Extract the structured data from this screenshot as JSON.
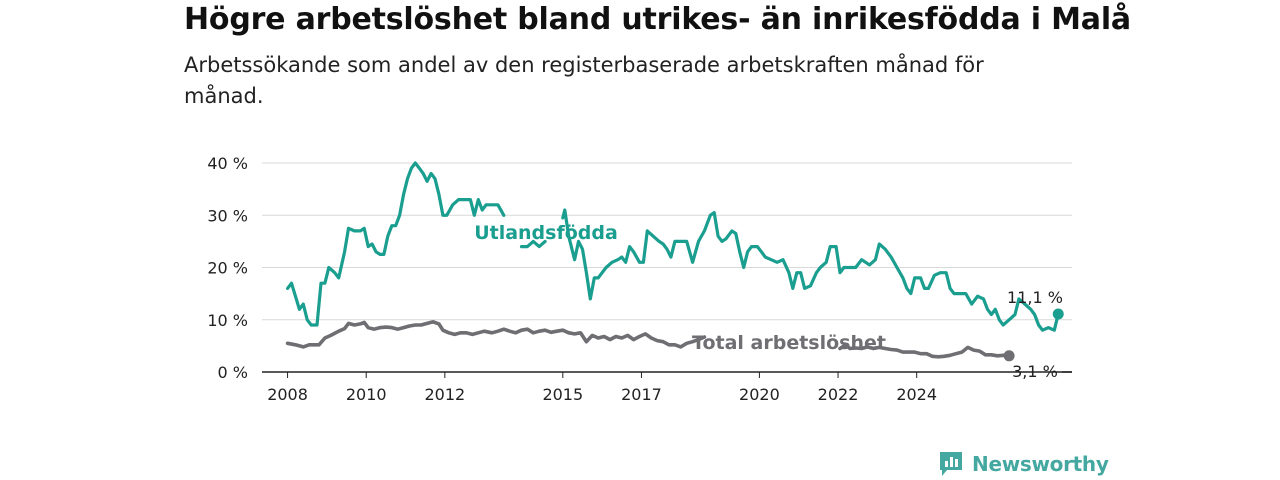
{
  "title": "Högre arbetslöshet bland utrikes- än inrikesfödda i Malå",
  "subtitle": "Arbetssökande som andel av den registerbaserade arbetskraften månad för månad.",
  "brand": {
    "name": "Newsworthy",
    "icon": "newsworthy-logo-icon",
    "color": "#45a8a0"
  },
  "chart_data": {
    "type": "line",
    "ylim": [
      0,
      40
    ],
    "y_ticks": [
      0,
      10,
      20,
      30,
      40
    ],
    "y_tick_labels": [
      "0 %",
      "10 %",
      "20 %",
      "30 %",
      "40 %"
    ],
    "x_ticks": [
      2008,
      2010,
      2012,
      2015,
      2017,
      2020,
      2022,
      2024
    ],
    "x_tick_labels": [
      "2008",
      "2010",
      "2012",
      "2015",
      "2017",
      "2020",
      "2022",
      "2024"
    ],
    "grid": true,
    "legend": "inline labels",
    "series": [
      {
        "name": "Utlandsfödda",
        "color": "#1a9e8f",
        "end_label": "11,1 %",
        "segments": [
          [
            [
              2008.0,
              16
            ],
            [
              2008.1,
              17
            ],
            [
              2008.3,
              12
            ],
            [
              2008.4,
              13
            ],
            [
              2008.5,
              10
            ],
            [
              2008.6,
              9
            ],
            [
              2008.75,
              9
            ],
            [
              2008.85,
              17
            ],
            [
              2008.95,
              17
            ],
            [
              2009.05,
              20
            ],
            [
              2009.2,
              19
            ],
            [
              2009.3,
              18
            ],
            [
              2009.45,
              23
            ],
            [
              2009.55,
              27.5
            ],
            [
              2009.7,
              27
            ],
            [
              2009.85,
              27
            ],
            [
              2009.95,
              27.5
            ],
            [
              2010.05,
              24
            ],
            [
              2010.15,
              24.5
            ],
            [
              2010.25,
              23
            ],
            [
              2010.35,
              22.5
            ],
            [
              2010.45,
              22.5
            ],
            [
              2010.55,
              26
            ],
            [
              2010.65,
              28
            ],
            [
              2010.75,
              28
            ],
            [
              2010.85,
              30
            ],
            [
              2010.95,
              34
            ],
            [
              2011.05,
              37
            ],
            [
              2011.15,
              39
            ],
            [
              2011.25,
              40
            ],
            [
              2011.35,
              39
            ],
            [
              2011.45,
              38
            ],
            [
              2011.55,
              36.5
            ],
            [
              2011.65,
              38
            ],
            [
              2011.75,
              37
            ],
            [
              2011.85,
              34
            ],
            [
              2011.95,
              30
            ],
            [
              2012.05,
              30
            ],
            [
              2012.2,
              32
            ],
            [
              2012.35,
              33
            ],
            [
              2012.5,
              33
            ],
            [
              2012.65,
              33
            ],
            [
              2012.75,
              30
            ],
            [
              2012.85,
              33
            ],
            [
              2012.95,
              31
            ],
            [
              2013.05,
              32
            ],
            [
              2013.2,
              32
            ],
            [
              2013.35,
              32
            ],
            [
              2013.5,
              30
            ]
          ],
          [
            [
              2013.95,
              24
            ],
            [
              2014.1,
              24
            ],
            [
              2014.25,
              25
            ],
            [
              2014.4,
              24
            ],
            [
              2014.55,
              25
            ]
          ],
          [
            [
              2015.0,
              29.5
            ],
            [
              2015.05,
              31
            ],
            [
              2015.15,
              26
            ],
            [
              2015.3,
              21.5
            ],
            [
              2015.4,
              25
            ],
            [
              2015.5,
              23.5
            ],
            [
              2015.6,
              19
            ],
            [
              2015.7,
              14
            ],
            [
              2015.8,
              18
            ],
            [
              2015.9,
              18
            ],
            [
              2016.0,
              19
            ],
            [
              2016.1,
              20
            ],
            [
              2016.25,
              21
            ],
            [
              2016.4,
              21.5
            ],
            [
              2016.5,
              22
            ],
            [
              2016.6,
              21
            ],
            [
              2016.7,
              24
            ],
            [
              2016.8,
              23
            ],
            [
              2016.95,
              21
            ],
            [
              2017.05,
              21
            ],
            [
              2017.15,
              27
            ],
            [
              2017.3,
              26
            ],
            [
              2017.45,
              25
            ],
            [
              2017.55,
              24.5
            ],
            [
              2017.65,
              23.5
            ],
            [
              2017.75,
              22
            ],
            [
              2017.85,
              25
            ],
            [
              2018.0,
              25
            ],
            [
              2018.15,
              25
            ],
            [
              2018.3,
              21
            ],
            [
              2018.45,
              25
            ],
            [
              2018.6,
              27
            ],
            [
              2018.75,
              30
            ],
            [
              2018.85,
              30.5
            ],
            [
              2018.95,
              26
            ],
            [
              2019.05,
              25
            ],
            [
              2019.15,
              25.5
            ],
            [
              2019.3,
              27
            ],
            [
              2019.4,
              26.5
            ],
            [
              2019.5,
              23
            ],
            [
              2019.6,
              20
            ],
            [
              2019.7,
              23
            ],
            [
              2019.8,
              24
            ],
            [
              2019.95,
              24
            ],
            [
              2020.05,
              23
            ],
            [
              2020.15,
              22
            ],
            [
              2020.3,
              21.5
            ],
            [
              2020.45,
              21
            ],
            [
              2020.6,
              21.5
            ],
            [
              2020.75,
              19
            ],
            [
              2020.85,
              16
            ],
            [
              2020.95,
              19
            ],
            [
              2021.05,
              19
            ],
            [
              2021.15,
              16
            ],
            [
              2021.3,
              16.5
            ],
            [
              2021.45,
              19
            ],
            [
              2021.55,
              20
            ],
            [
              2021.7,
              21
            ],
            [
              2021.8,
              24
            ],
            [
              2021.95,
              24
            ],
            [
              2022.05,
              19
            ],
            [
              2022.15,
              20
            ],
            [
              2022.3,
              20
            ],
            [
              2022.45,
              20
            ],
            [
              2022.6,
              21.5
            ],
            [
              2022.7,
              21
            ],
            [
              2022.8,
              20.5
            ],
            [
              2022.95,
              21.5
            ],
            [
              2023.05,
              24.5
            ],
            [
              2023.2,
              23.5
            ],
            [
              2023.35,
              22
            ],
            [
              2023.5,
              20
            ],
            [
              2023.65,
              18
            ],
            [
              2023.75,
              16
            ],
            [
              2023.85,
              15
            ],
            [
              2023.95,
              18
            ],
            [
              2024.1,
              18
            ],
            [
              2024.2,
              16
            ],
            [
              2024.3,
              16
            ],
            [
              2024.45,
              18.5
            ],
            [
              2024.6,
              19
            ],
            [
              2024.75,
              19
            ],
            [
              2024.85,
              16
            ],
            [
              2024.95,
              15
            ],
            [
              2025.1,
              15
            ],
            [
              2025.25,
              15
            ],
            [
              2025.4,
              13
            ],
            [
              2025.55,
              14.5
            ],
            [
              2025.7,
              14
            ],
            [
              2025.8,
              12
            ],
            [
              2025.9,
              11
            ],
            [
              2026.0,
              12
            ],
            [
              2026.1,
              10
            ],
            [
              2026.2,
              9
            ],
            [
              2026.35,
              10
            ],
            [
              2026.5,
              11
            ],
            [
              2026.6,
              14
            ],
            [
              2026.75,
              13
            ],
            [
              2026.9,
              12
            ],
            [
              2027.0,
              11
            ],
            [
              2027.1,
              9
            ],
            [
              2027.2,
              8
            ],
            [
              2027.35,
              8.5
            ],
            [
              2027.5,
              8
            ],
            [
              2027.6,
              11.1
            ]
          ]
        ]
      },
      {
        "name": "Total arbetslöshet",
        "color": "#6e6e73",
        "end_label": "3,1 %",
        "segments": [
          [
            [
              2008.0,
              5.5
            ],
            [
              2008.2,
              5.2
            ],
            [
              2008.4,
              4.8
            ],
            [
              2008.55,
              5.2
            ],
            [
              2008.8,
              5.2
            ],
            [
              2008.95,
              6.5
            ],
            [
              2009.1,
              7
            ],
            [
              2009.3,
              7.8
            ],
            [
              2009.45,
              8.3
            ],
            [
              2009.55,
              9.3
            ],
            [
              2009.7,
              9
            ],
            [
              2009.85,
              9.2
            ],
            [
              2009.95,
              9.5
            ],
            [
              2010.05,
              8.5
            ],
            [
              2010.2,
              8.2
            ],
            [
              2010.35,
              8.5
            ],
            [
              2010.5,
              8.6
            ],
            [
              2010.65,
              8.5
            ],
            [
              2010.8,
              8.2
            ],
            [
              2010.95,
              8.5
            ],
            [
              2011.1,
              8.8
            ],
            [
              2011.25,
              9
            ],
            [
              2011.4,
              9
            ],
            [
              2011.55,
              9.3
            ],
            [
              2011.7,
              9.6
            ],
            [
              2011.85,
              9.2
            ],
            [
              2011.95,
              8
            ],
            [
              2012.1,
              7.5
            ],
            [
              2012.25,
              7.2
            ],
            [
              2012.4,
              7.5
            ],
            [
              2012.55,
              7.5
            ],
            [
              2012.7,
              7.2
            ],
            [
              2012.85,
              7.5
            ],
            [
              2013.0,
              7.8
            ],
            [
              2013.2,
              7.5
            ],
            [
              2013.35,
              7.8
            ],
            [
              2013.5,
              8.2
            ],
            [
              2013.65,
              7.8
            ],
            [
              2013.8,
              7.5
            ],
            [
              2013.95,
              8
            ],
            [
              2014.1,
              8.2
            ],
            [
              2014.25,
              7.5
            ],
            [
              2014.4,
              7.8
            ],
            [
              2014.55,
              8
            ],
            [
              2014.7,
              7.6
            ],
            [
              2014.85,
              7.8
            ],
            [
              2015.0,
              8
            ],
            [
              2015.15,
              7.5
            ],
            [
              2015.3,
              7.3
            ],
            [
              2015.45,
              7.5
            ],
            [
              2015.6,
              5.8
            ],
            [
              2015.75,
              7
            ],
            [
              2015.9,
              6.5
            ],
            [
              2016.05,
              6.8
            ],
            [
              2016.2,
              6.2
            ],
            [
              2016.35,
              6.8
            ],
            [
              2016.5,
              6.5
            ],
            [
              2016.65,
              7
            ],
            [
              2016.8,
              6.2
            ],
            [
              2016.95,
              6.8
            ],
            [
              2017.1,
              7.3
            ],
            [
              2017.25,
              6.5
            ],
            [
              2017.4,
              6
            ],
            [
              2017.55,
              5.8
            ],
            [
              2017.7,
              5.2
            ],
            [
              2017.85,
              5.2
            ],
            [
              2018.0,
              4.8
            ],
            [
              2018.15,
              5.5
            ],
            [
              2018.3,
              5.8
            ],
            [
              2018.45,
              6.2
            ],
            [
              2018.6,
              6.7
            ]
          ],
          [
            [
              2022.05,
              4.5
            ],
            [
              2022.2,
              5.2
            ],
            [
              2022.3,
              4.5
            ],
            [
              2022.45,
              4.6
            ],
            [
              2022.6,
              4.5
            ],
            [
              2022.75,
              4.8
            ],
            [
              2022.9,
              4.5
            ],
            [
              2023.05,
              4.7
            ],
            [
              2023.2,
              4.5
            ],
            [
              2023.35,
              4.3
            ],
            [
              2023.5,
              4.2
            ],
            [
              2023.65,
              3.8
            ],
            [
              2023.8,
              3.8
            ],
            [
              2023.95,
              3.8
            ],
            [
              2024.1,
              3.5
            ],
            [
              2024.25,
              3.5
            ],
            [
              2024.4,
              3
            ],
            [
              2024.55,
              2.9
            ],
            [
              2024.7,
              3
            ],
            [
              2024.85,
              3.2
            ],
            [
              2025.0,
              3.5
            ],
            [
              2025.15,
              3.8
            ],
            [
              2025.3,
              4.7
            ],
            [
              2025.45,
              4.2
            ],
            [
              2025.6,
              4
            ],
            [
              2025.75,
              3.3
            ],
            [
              2025.9,
              3.3
            ],
            [
              2026.05,
              3.1
            ],
            [
              2026.2,
              3.2
            ],
            [
              2026.35,
              3.1
            ]
          ]
        ]
      }
    ]
  }
}
